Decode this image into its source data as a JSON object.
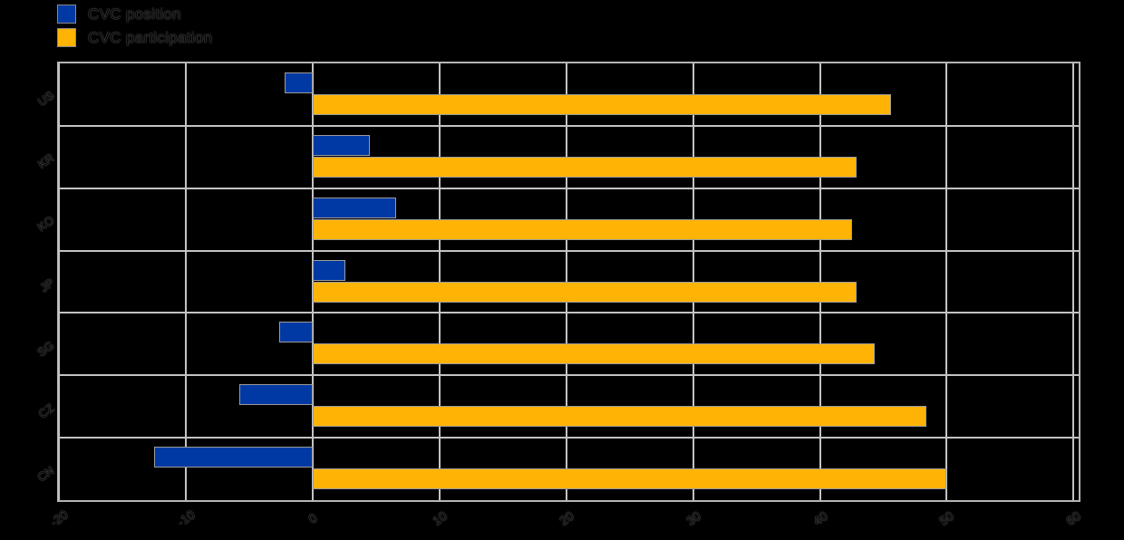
{
  "legend": {
    "items": [
      {
        "label": "CVC position",
        "color": "#0039A3"
      },
      {
        "label": "CVC participation",
        "color": "#FFB405"
      }
    ]
  },
  "chart_data": {
    "type": "bar",
    "orientation": "horizontal",
    "title": "",
    "xlabel": "",
    "ylabel": "",
    "categories": [
      "US",
      "KR",
      "KO",
      "JP",
      "SG",
      "CZ",
      "CN"
    ],
    "series": [
      {
        "name": "CVC position",
        "color": "#0039A3",
        "values": [
          -2.2,
          4.5,
          6.6,
          2.6,
          -2.6,
          -5.8,
          -12.5
        ]
      },
      {
        "name": "CVC participation",
        "color": "#FFB405",
        "values": [
          45.6,
          42.9,
          42.5,
          42.9,
          44.3,
          48.4,
          50.0
        ]
      }
    ],
    "xlim": [
      -20,
      60.4
    ],
    "xticks": [
      -20,
      -10,
      0,
      10,
      20,
      30,
      40,
      50,
      60
    ],
    "grid": true,
    "legend_position": "top-left",
    "colors": {
      "grid": "#c3c3c3",
      "plot_border": "#b5b5b5",
      "bar_outline": "#9b9b9b",
      "background": "#000000",
      "text": "#050505"
    }
  }
}
